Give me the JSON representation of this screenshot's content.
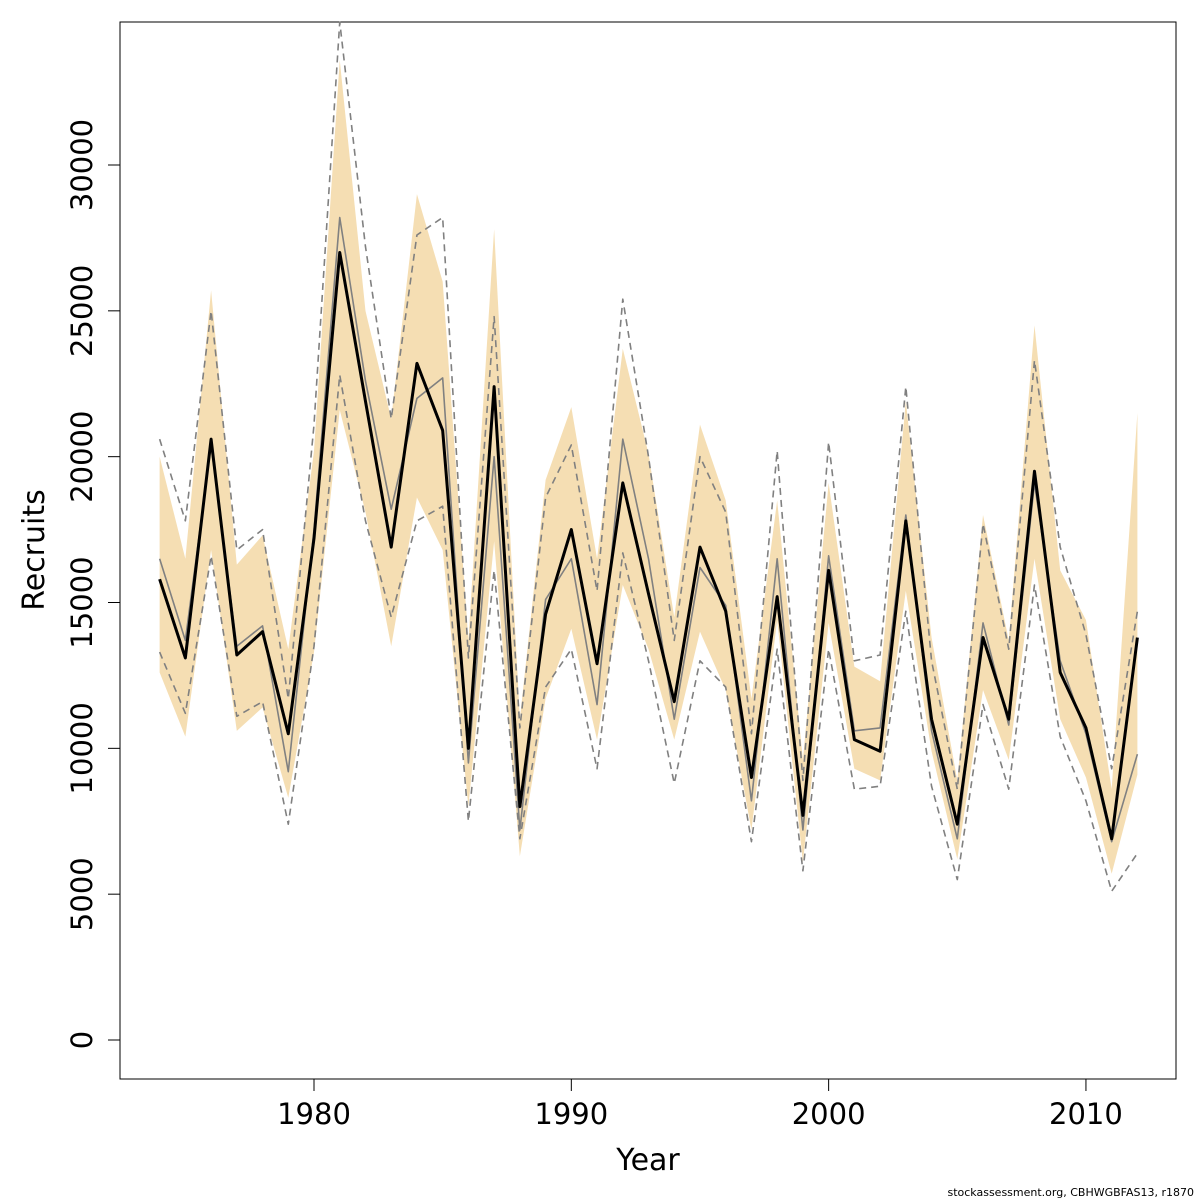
{
  "chart_data": {
    "type": "line",
    "x_label": "Year",
    "y_label": "Recruits",
    "footnote": "stockassessment.org, CBHWGBFAS13, r1870",
    "x": [
      1974,
      1975,
      1976,
      1977,
      1978,
      1979,
      1980,
      1981,
      1982,
      1983,
      1984,
      1985,
      1986,
      1987,
      1988,
      1989,
      1990,
      1991,
      1992,
      1993,
      1994,
      1995,
      1996,
      1997,
      1998,
      1999,
      2000,
      2001,
      2002,
      2003,
      2004,
      2005,
      2006,
      2007,
      2008,
      2009,
      2010,
      2011,
      2012
    ],
    "xlim": [
      1972.46,
      2013.5
    ],
    "xticks": [
      1980,
      1990,
      2000,
      2010
    ],
    "ylim": [
      -1337,
      34903
    ],
    "yticks": [
      0,
      5000,
      10000,
      15000,
      20000,
      25000,
      30000
    ],
    "band": {
      "color": "#f5deb3",
      "upper": [
        20000,
        16500,
        25700,
        16300,
        17300,
        13400,
        20200,
        33600,
        25000,
        21300,
        29000,
        26000,
        13700,
        27800,
        11000,
        19200,
        21700,
        16500,
        23700,
        20100,
        14500,
        21100,
        18500,
        11700,
        18500,
        9600,
        19100,
        12800,
        12300,
        21900,
        13800,
        8900,
        18000,
        13700,
        24500,
        16100,
        14400,
        8600,
        21500
      ],
      "lower": [
        12600,
        10400,
        16800,
        10600,
        11400,
        8300,
        13300,
        21600,
        18100,
        13500,
        18600,
        16800,
        8000,
        17100,
        6300,
        11700,
        14100,
        10300,
        15600,
        13400,
        10300,
        14000,
        12000,
        7200,
        14400,
        6100,
        14300,
        9300,
        8900,
        15400,
        9900,
        6200,
        12000,
        9600,
        16500,
        11000,
        9000,
        5700,
        9100
      ]
    },
    "series": [
      {
        "color": "#808080",
        "dashed": true,
        "width": 1.6,
        "values": [
          20600,
          17800,
          25000,
          16800,
          17500,
          11700,
          21100,
          34900,
          27200,
          21300,
          27600,
          28200,
          13100,
          24800,
          10700,
          18600,
          20400,
          15400,
          25400,
          20000,
          13700,
          20000,
          18100,
          10500,
          20200,
          8900,
          20500,
          13000,
          13200,
          22400,
          13000,
          8600,
          17700,
          13400,
          23300,
          16900,
          13900,
          9300,
          14700
        ]
      },
      {
        "color": "#808080",
        "dashed": true,
        "width": 1.6,
        "values": [
          13300,
          11200,
          16600,
          11100,
          11600,
          7400,
          13500,
          22800,
          17800,
          14500,
          17800,
          18300,
          7500,
          16100,
          6900,
          12100,
          13400,
          9300,
          16700,
          13000,
          8800,
          13000,
          12100,
          6800,
          13400,
          5800,
          13400,
          8600,
          8700,
          14700,
          8700,
          5500,
          11500,
          8600,
          15600,
          10400,
          8200,
          5100,
          6400
        ]
      },
      {
        "color": "#808080",
        "dashed": false,
        "width": 1.6,
        "values": [
          16500,
          13700,
          20400,
          13500,
          14200,
          9200,
          17500,
          28200,
          22600,
          18200,
          22000,
          22700,
          9500,
          20000,
          7200,
          15100,
          16500,
          11500,
          20600,
          16500,
          11000,
          16200,
          14900,
          8200,
          16500,
          7200,
          16600,
          10600,
          10700,
          18000,
          10600,
          6900,
          14300,
          10800,
          19100,
          13000,
          10500,
          6800,
          9800
        ]
      },
      {
        "color": "#000000",
        "dashed": false,
        "width": 3,
        "values": [
          15800,
          13100,
          20600,
          13200,
          14000,
          10500,
          17200,
          27000,
          21900,
          16900,
          23200,
          20900,
          10000,
          22400,
          8000,
          14600,
          17500,
          12900,
          19100,
          15300,
          11600,
          16900,
          14700,
          9000,
          15200,
          7700,
          16100,
          10300,
          9900,
          17800,
          11000,
          7400,
          13800,
          11000,
          19500,
          12600,
          10700,
          6900,
          13800
        ]
      }
    ]
  }
}
